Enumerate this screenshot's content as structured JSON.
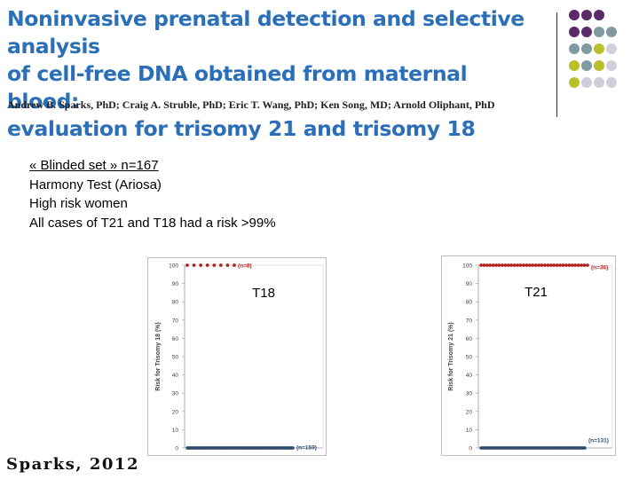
{
  "slide": {
    "title_lines": [
      "Noninvasive prenatal detection and selective analysis",
      "of cell-free DNA obtained from maternal blood:",
      "evaluation for trisomy 21 and trisomy 18"
    ],
    "authors": "Andrew B. Sparks, PhD; Craig A. Struble, PhD; Eric T. Wang, PhD; Ken Song, MD; Arnold Oliphant, PhD",
    "bullets": [
      "«  Blinded set » n=167",
      "Harmony Test (Ariosa)",
      "High risk women",
      "All cases of T21 and T18 had a risk >99%"
    ],
    "footer": "Sparks, 2012",
    "colors": {
      "title": "#2a6fb7",
      "dots": [
        "#5b2a6b",
        "#7f9aa0",
        "#b9c02a",
        "#cfcfdc"
      ]
    }
  },
  "chart_data": [
    {
      "type": "scatter",
      "title": "T18",
      "ylabel": "Risk for Trisomy 18 (%)",
      "ylim": [
        0,
        100
      ],
      "yticks": [
        0,
        10,
        20,
        30,
        40,
        50,
        60,
        70,
        80,
        90,
        100
      ],
      "series": [
        {
          "name": "(n=8)",
          "color": "#b22222",
          "count": 8,
          "value": 100
        },
        {
          "name": "(n=159)",
          "color": "#2e4a6e",
          "count": 159,
          "value": 0
        }
      ]
    },
    {
      "type": "scatter",
      "title": "T21",
      "ylabel": "Risk for Trisomy 21 (%)",
      "ylim": [
        0,
        100
      ],
      "yticks": [
        0,
        10,
        20,
        30,
        40,
        50,
        60,
        70,
        80,
        90,
        100
      ],
      "series": [
        {
          "name": "(n=36)",
          "color": "#b22222",
          "count": 36,
          "value": 100
        },
        {
          "name": "(n=131)",
          "color": "#2e4a6e",
          "count": 131,
          "value": 0
        }
      ]
    }
  ]
}
